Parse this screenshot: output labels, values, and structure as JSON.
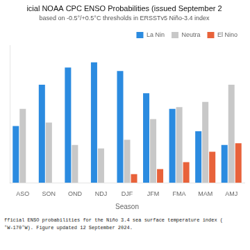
{
  "chart_data": {
    "type": "bar",
    "title": "icial NOAA CPC ENSO Probabilities (issued September 2",
    "subtitle": "based on -0.5°/+0.5°C thresholds in ERSSTv5 Niño-3.4 index",
    "xlabel": "Season",
    "categories": [
      "ASO",
      "SON",
      "OND",
      "NDJ",
      "DJF",
      "JFM",
      "FMA",
      "MAM",
      "AMJ"
    ],
    "series": [
      {
        "name": "La Nin",
        "color": "#2b8be0",
        "values": [
          33,
          57,
          67,
          70,
          65,
          52,
          43,
          30,
          22
        ]
      },
      {
        "name": "Neutra",
        "color": "#c8c8c8",
        "values": [
          43,
          35,
          22,
          20,
          25,
          37,
          44,
          47,
          57
        ]
      },
      {
        "name": "El Nino",
        "color": "#e8623a",
        "values": [
          0,
          0,
          0,
          0,
          5,
          8,
          12,
          18,
          23
        ]
      }
    ],
    "ylim": [
      0,
      80
    ],
    "tick_labels": "x",
    "grid": false,
    "legend": "upper right",
    "annotations": [
      "fficial ENSO probabilities for the Niño 3.4 sea surface temperature index (",
      "°W-170°W). Figure updated 12 September 2024."
    ]
  }
}
